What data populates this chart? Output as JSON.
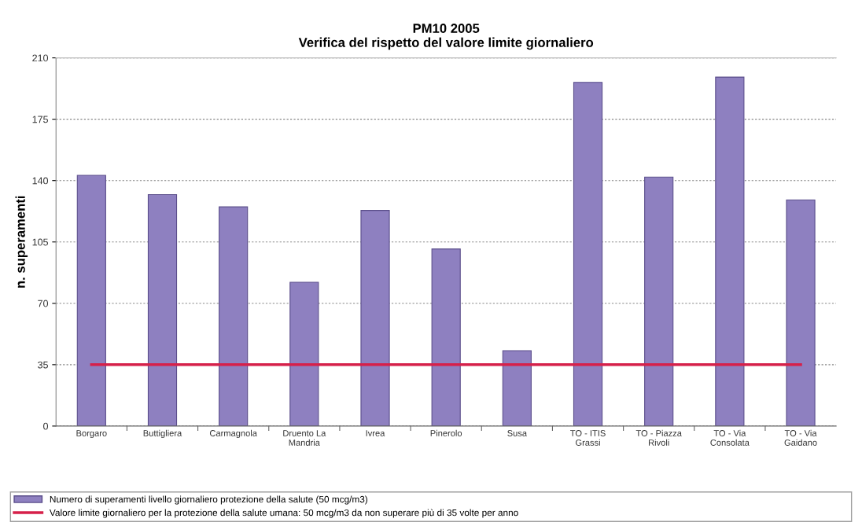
{
  "chart_data": {
    "type": "bar",
    "title": "PM10 2005\nVerifica del rispetto del valore limite giornaliero",
    "ylabel": "n. superamenti",
    "categories": [
      "Borgaro",
      "Buttigliera",
      "Carmagnola",
      "Druento La\nMandria",
      "Ivrea",
      "Pinerolo",
      "Susa",
      "TO - ITIS\nGrassi",
      "TO - Piazza\nRivoli",
      "TO - Via\nConsolata",
      "TO - Via\nGaidano"
    ],
    "series": [
      {
        "name": "Numero di superamenti livello giornaliero protezione della salute (50 mcg/m3)",
        "color": "#8e80c0",
        "values": [
          143,
          132,
          125,
          82,
          123,
          101,
          43,
          196,
          142,
          199,
          129
        ]
      },
      {
        "name": "Valore limite giornaliero per la protezione della salute umana: 50 mcg/m3 da non superare più di 35 volte per anno",
        "type": "line",
        "color": "#d6204a",
        "values": [
          35,
          35,
          35,
          35,
          35,
          35,
          35,
          35,
          35,
          35,
          35
        ]
      }
    ],
    "ylim": [
      0,
      210
    ],
    "yticks": [
      0,
      35,
      70,
      105,
      140,
      175,
      210
    ],
    "grid": "y",
    "legend": "bottom",
    "marker": "none",
    "line_style": "solid"
  }
}
